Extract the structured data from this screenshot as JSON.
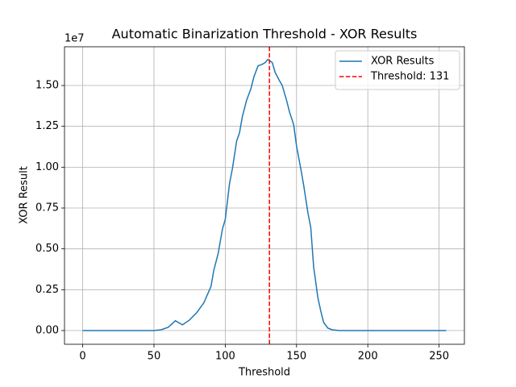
{
  "chart_data": {
    "type": "line",
    "title": "Automatic Binarization Threshold - XOR Results",
    "xlabel": "Threshold",
    "ylabel": "XOR Result",
    "y_offset_label": "1e7",
    "x": [
      0,
      50,
      55,
      60,
      65,
      70,
      75,
      80,
      85,
      90,
      92,
      95,
      98,
      100,
      103,
      105,
      108,
      110,
      112,
      115,
      118,
      120,
      123,
      126,
      128,
      130,
      133,
      135,
      138,
      140,
      143,
      145,
      148,
      150,
      153,
      155,
      158,
      160,
      162,
      165,
      167,
      169,
      172,
      175,
      180,
      255
    ],
    "series": [
      {
        "name": "XOR Results",
        "color": "#1f77b4",
        "values": [
          0,
          0,
          50000,
          200000,
          600000,
          350000,
          650000,
          1100000,
          1700000,
          2700000,
          3700000,
          4700000,
          6200000,
          6800000,
          9000000,
          9900000,
          11600000,
          12100000,
          13100000,
          14100000,
          14800000,
          15500000,
          16200000,
          16300000,
          16400000,
          16600000,
          16400000,
          15800000,
          15300000,
          15000000,
          14100000,
          13400000,
          12600000,
          11300000,
          9900000,
          8900000,
          7200000,
          6300000,
          3900000,
          2000000,
          1200000,
          500000,
          150000,
          50000,
          0,
          0
        ]
      }
    ],
    "threshold": {
      "name": "Threshold: 131",
      "value": 131,
      "color": "#ff0000",
      "style": "dashed"
    },
    "xlim": [
      -12.75,
      267.75
    ],
    "xticks": [
      0,
      50,
      100,
      150,
      200,
      250
    ],
    "ylim": [
      -839000,
      17370000
    ],
    "yticks": [
      {
        "value": 0,
        "label": "0.00"
      },
      {
        "value": 2500000,
        "label": "0.25"
      },
      {
        "value": 5000000,
        "label": "0.50"
      },
      {
        "value": 7500000,
        "label": "0.75"
      },
      {
        "value": 10000000,
        "label": "1.00"
      },
      {
        "value": 12500000,
        "label": "1.25"
      },
      {
        "value": 15000000,
        "label": "1.50"
      }
    ],
    "grid": true,
    "legend": "upper right"
  }
}
